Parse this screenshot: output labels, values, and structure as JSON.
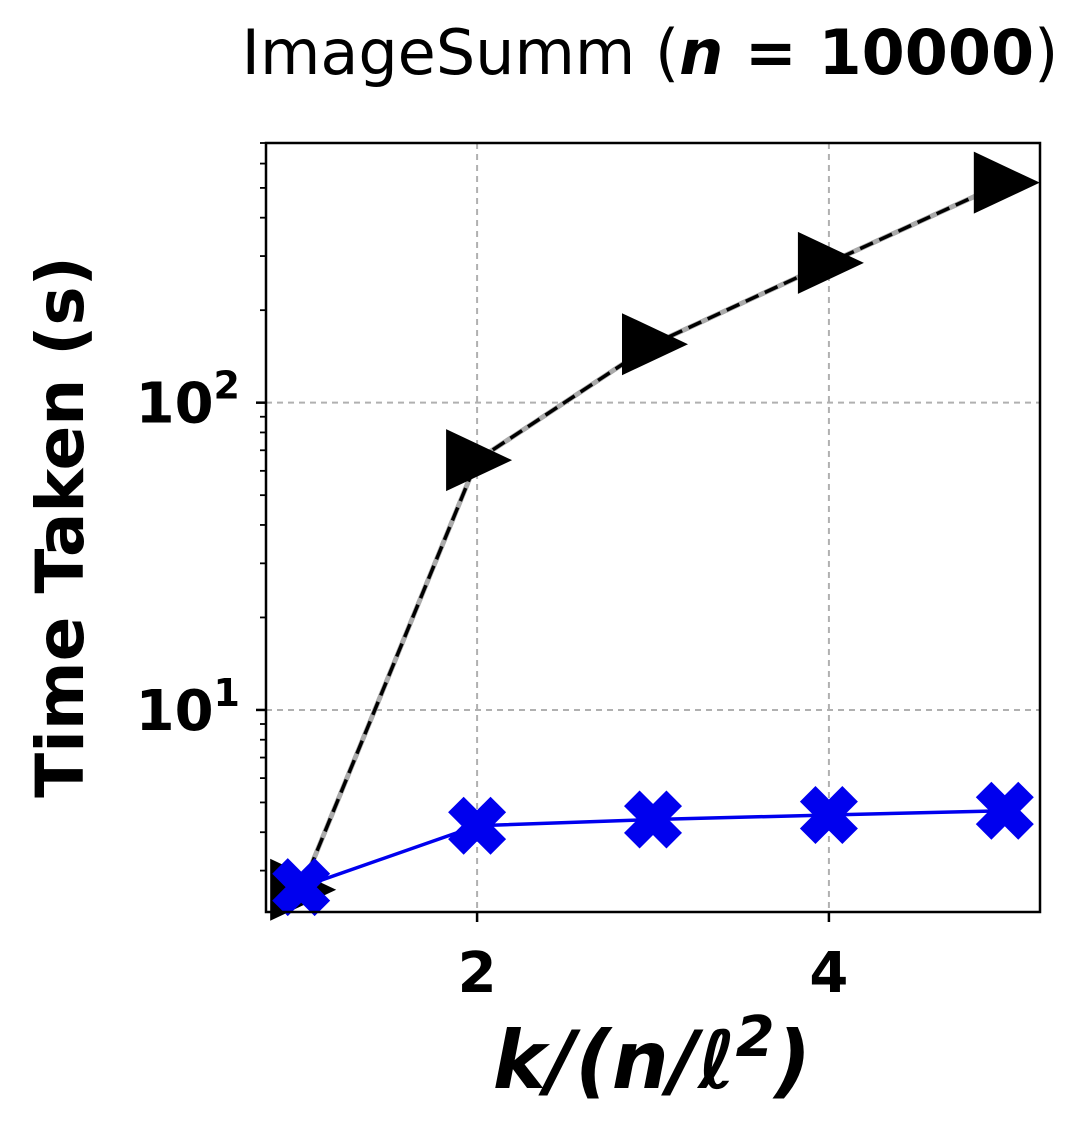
{
  "chart_data": {
    "type": "line",
    "title": {
      "prefix": "ImageSumm (",
      "var": "n",
      "eq": " = ",
      "value": "10000",
      "suffix": ")"
    },
    "xlabel": {
      "k": "k",
      "slash1": "/(",
      "n": "n",
      "slash2": "/",
      "ell": "ℓ",
      "sup": "2",
      "close": ")"
    },
    "ylabel": "Time Taken (s)",
    "x_scale": "linear",
    "y_scale": "log",
    "xlim": [
      0.8,
      5.2
    ],
    "ylim": [
      2.2,
      700
    ],
    "x_ticks": [
      {
        "value": 2,
        "label": "2"
      },
      {
        "value": 4,
        "label": "4"
      }
    ],
    "y_ticks": [
      {
        "value": 10,
        "base": "10",
        "exp": "1"
      },
      {
        "value": 100,
        "base": "10",
        "exp": "2"
      }
    ],
    "grid": true,
    "series": [
      {
        "marker": "triangle-right",
        "color": "#000000",
        "line_style": "dashed",
        "x": [
          1,
          2,
          3,
          4,
          5
        ],
        "y": [
          2.6,
          65,
          155,
          285,
          520
        ]
      },
      {
        "marker": "x-filled",
        "color": "#0000ee",
        "line_style": "solid",
        "x": [
          1,
          2,
          3,
          4,
          5
        ],
        "y": [
          2.65,
          4.2,
          4.4,
          4.55,
          4.7
        ]
      }
    ]
  }
}
